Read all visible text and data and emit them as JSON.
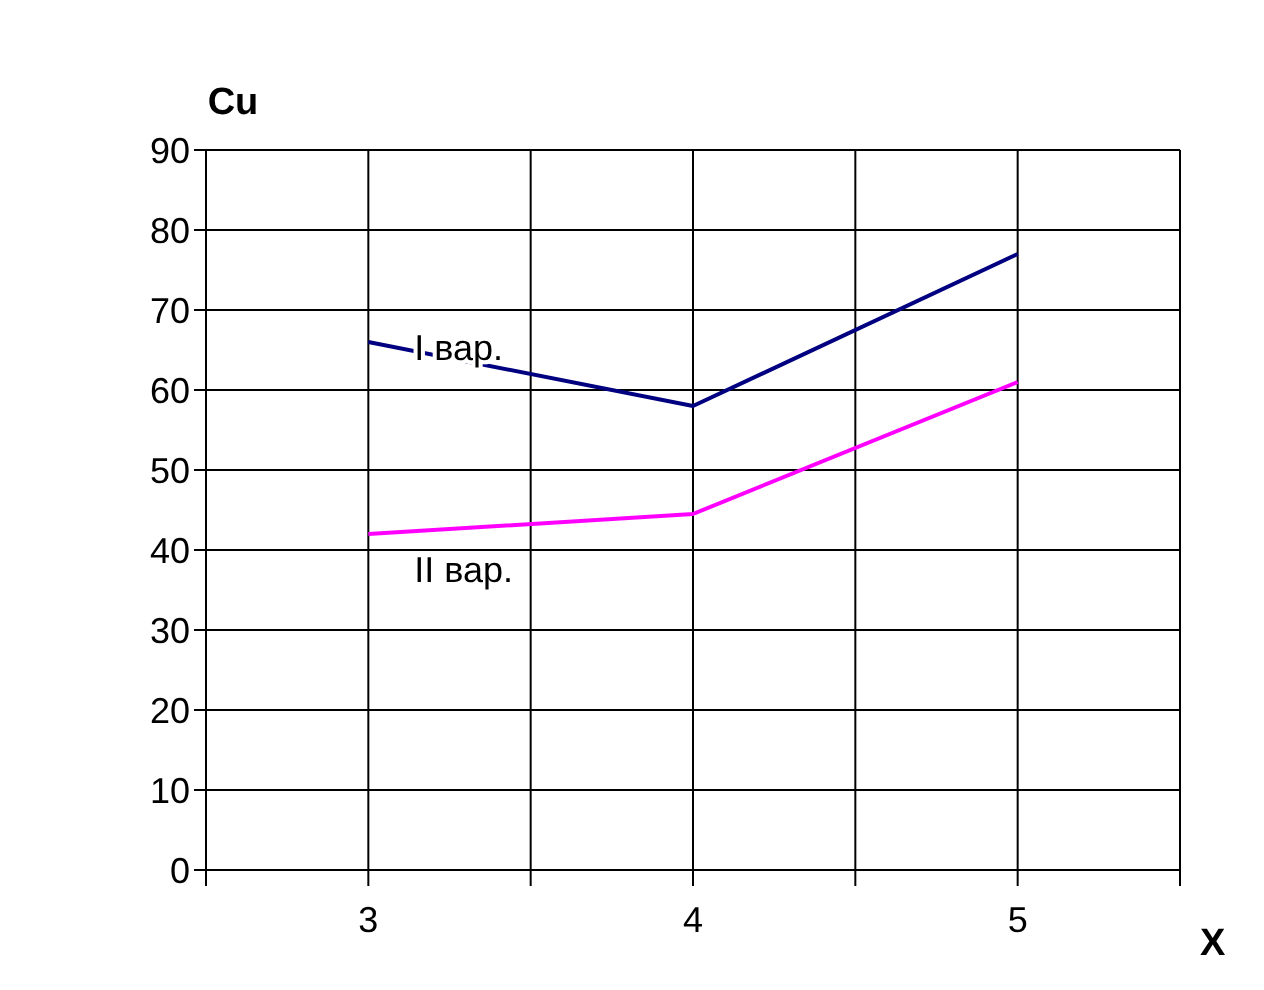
{
  "chart_data": {
    "type": "line",
    "xlabel": "X",
    "ylabel": "Cu",
    "x": [
      3,
      4,
      5
    ],
    "series": [
      {
        "name": "I вар.",
        "color": "#000080",
        "values": [
          66,
          58,
          77
        ]
      },
      {
        "name": "II вар.",
        "color": "#ff00ff",
        "values": [
          42,
          44.5,
          61
        ]
      }
    ],
    "xlim": [
      2.5,
      5.5
    ],
    "xticks": [
      {
        "value": 2.5,
        "label": null
      },
      3,
      {
        "value": 3.5,
        "label": null
      },
      4,
      {
        "value": 4.5,
        "label": null
      },
      5,
      {
        "value": 5.5,
        "label": null
      }
    ],
    "ylim": [
      0,
      90
    ],
    "yticks": [
      0,
      10,
      20,
      30,
      40,
      50,
      60,
      70,
      80,
      90
    ],
    "grid": true,
    "marker": "none",
    "line_style": "solid",
    "legend": false
  }
}
